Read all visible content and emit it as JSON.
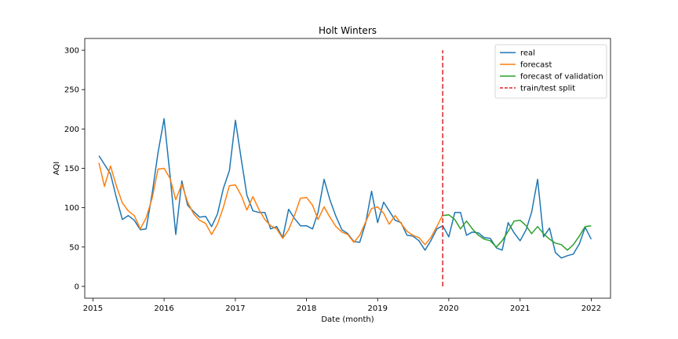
{
  "chart_data": {
    "type": "line",
    "title": "Holt Winters",
    "xlabel": "Date (month)",
    "ylabel": "AQI",
    "xlim": [
      "2014-11-20",
      "2022-04-10"
    ],
    "ylim": [
      -15,
      315
    ],
    "x_ticks": [
      "2015",
      "2016",
      "2017",
      "2018",
      "2019",
      "2020",
      "2021",
      "2022"
    ],
    "y_ticks": [
      0,
      50,
      100,
      150,
      200,
      250,
      300
    ],
    "grid": false,
    "legend_position": "top-right",
    "series": [
      {
        "name": "real",
        "color": "#1f77b4",
        "points": [
          [
            "2015-02",
            166
          ],
          [
            "2015-03",
            155
          ],
          [
            "2015-04",
            143
          ],
          [
            "2015-05",
            113
          ],
          [
            "2015-06",
            85
          ],
          [
            "2015-07",
            90
          ],
          [
            "2015-08",
            84
          ],
          [
            "2015-09",
            72
          ],
          [
            "2015-10",
            73
          ],
          [
            "2015-11",
            118
          ],
          [
            "2015-12",
            170
          ],
          [
            "2016-01",
            213
          ],
          [
            "2016-02",
            140
          ],
          [
            "2016-03",
            66
          ],
          [
            "2016-04",
            134
          ],
          [
            "2016-05",
            103
          ],
          [
            "2016-06",
            95
          ],
          [
            "2016-07",
            88
          ],
          [
            "2016-08",
            89
          ],
          [
            "2016-09",
            76
          ],
          [
            "2016-10",
            92
          ],
          [
            "2016-11",
            125
          ],
          [
            "2016-12",
            147
          ],
          [
            "2017-01",
            211
          ],
          [
            "2017-02",
            160
          ],
          [
            "2017-03",
            116
          ],
          [
            "2017-04",
            96
          ],
          [
            "2017-05",
            94
          ],
          [
            "2017-06",
            94
          ],
          [
            "2017-07",
            73
          ],
          [
            "2017-08",
            76
          ],
          [
            "2017-09",
            62
          ],
          [
            "2017-10",
            98
          ],
          [
            "2017-11",
            86
          ],
          [
            "2017-12",
            77
          ],
          [
            "2018-01",
            77
          ],
          [
            "2018-02",
            73
          ],
          [
            "2018-03",
            94
          ],
          [
            "2018-04",
            136
          ],
          [
            "2018-05",
            110
          ],
          [
            "2018-06",
            89
          ],
          [
            "2018-07",
            72
          ],
          [
            "2018-08",
            67
          ],
          [
            "2018-09",
            57
          ],
          [
            "2018-10",
            56
          ],
          [
            "2018-11",
            81
          ],
          [
            "2018-12",
            121
          ],
          [
            "2019-01",
            81
          ],
          [
            "2019-02",
            107
          ],
          [
            "2019-03",
            96
          ],
          [
            "2019-04",
            84
          ],
          [
            "2019-05",
            81
          ],
          [
            "2019-06",
            65
          ],
          [
            "2019-07",
            64
          ],
          [
            "2019-08",
            58
          ],
          [
            "2019-09",
            46
          ],
          [
            "2019-10",
            58
          ],
          [
            "2019-11",
            73
          ],
          [
            "2019-12",
            77
          ],
          [
            "2020-01",
            63
          ],
          [
            "2020-02",
            94
          ],
          [
            "2020-03",
            94
          ],
          [
            "2020-04",
            65
          ],
          [
            "2020-05",
            69
          ],
          [
            "2020-06",
            68
          ],
          [
            "2020-07",
            62
          ],
          [
            "2020-08",
            61
          ],
          [
            "2020-09",
            49
          ],
          [
            "2020-10",
            46
          ],
          [
            "2020-11",
            81
          ],
          [
            "2020-12",
            68
          ],
          [
            "2021-01",
            58
          ],
          [
            "2021-02",
            72
          ],
          [
            "2021-03",
            94
          ],
          [
            "2021-04",
            136
          ],
          [
            "2021-05",
            63
          ],
          [
            "2021-06",
            74
          ],
          [
            "2021-07",
            43
          ],
          [
            "2021-08",
            36
          ],
          [
            "2021-09",
            39
          ],
          [
            "2021-10",
            41
          ],
          [
            "2021-11",
            54
          ],
          [
            "2021-12",
            75
          ],
          [
            "2022-01",
            60
          ]
        ]
      },
      {
        "name": "forecast",
        "color": "#ff7f0e",
        "points": [
          [
            "2015-02",
            157
          ],
          [
            "2015-03",
            127
          ],
          [
            "2015-04",
            153
          ],
          [
            "2015-05",
            128
          ],
          [
            "2015-06",
            106
          ],
          [
            "2015-07",
            96
          ],
          [
            "2015-08",
            90
          ],
          [
            "2015-09",
            73
          ],
          [
            "2015-10",
            87
          ],
          [
            "2015-11",
            112
          ],
          [
            "2015-12",
            149
          ],
          [
            "2016-01",
            150
          ],
          [
            "2016-02",
            137
          ],
          [
            "2016-03",
            110
          ],
          [
            "2016-04",
            130
          ],
          [
            "2016-05",
            107
          ],
          [
            "2016-06",
            92
          ],
          [
            "2016-07",
            84
          ],
          [
            "2016-08",
            80
          ],
          [
            "2016-09",
            66
          ],
          [
            "2016-10",
            79
          ],
          [
            "2016-11",
            101
          ],
          [
            "2016-12",
            128
          ],
          [
            "2017-01",
            129
          ],
          [
            "2017-02",
            115
          ],
          [
            "2017-03",
            97
          ],
          [
            "2017-04",
            114
          ],
          [
            "2017-05",
            98
          ],
          [
            "2017-06",
            85
          ],
          [
            "2017-07",
            77
          ],
          [
            "2017-08",
            73
          ],
          [
            "2017-09",
            61
          ],
          [
            "2017-10",
            72
          ],
          [
            "2017-11",
            91
          ],
          [
            "2017-12",
            112
          ],
          [
            "2018-01",
            113
          ],
          [
            "2018-02",
            103
          ],
          [
            "2018-03",
            85
          ],
          [
            "2018-04",
            101
          ],
          [
            "2018-05",
            88
          ],
          [
            "2018-06",
            76
          ],
          [
            "2018-07",
            69
          ],
          [
            "2018-08",
            66
          ],
          [
            "2018-09",
            56
          ],
          [
            "2018-10",
            65
          ],
          [
            "2018-11",
            82
          ],
          [
            "2018-12",
            99
          ],
          [
            "2019-01",
            101
          ],
          [
            "2019-02",
            93
          ],
          [
            "2019-03",
            79
          ],
          [
            "2019-04",
            90
          ],
          [
            "2019-05",
            80
          ],
          [
            "2019-06",
            70
          ],
          [
            "2019-07",
            65
          ],
          [
            "2019-08",
            62
          ],
          [
            "2019-09",
            53
          ],
          [
            "2019-10",
            62
          ],
          [
            "2019-11",
            76
          ],
          [
            "2019-12",
            91
          ]
        ]
      },
      {
        "name": "forecast of validation",
        "color": "#2ca02c",
        "points": [
          [
            "2019-12",
            90
          ],
          [
            "2020-01",
            91
          ],
          [
            "2020-02",
            85
          ],
          [
            "2020-03",
            73
          ],
          [
            "2020-04",
            83
          ],
          [
            "2020-05",
            73
          ],
          [
            "2020-06",
            65
          ],
          [
            "2020-07",
            60
          ],
          [
            "2020-08",
            58
          ],
          [
            "2020-09",
            50
          ],
          [
            "2020-10",
            58
          ],
          [
            "2020-11",
            70
          ],
          [
            "2020-12",
            83
          ],
          [
            "2021-01",
            84
          ],
          [
            "2021-02",
            77
          ],
          [
            "2021-03",
            67
          ],
          [
            "2021-04",
            76
          ],
          [
            "2021-05",
            67
          ],
          [
            "2021-06",
            60
          ],
          [
            "2021-07",
            55
          ],
          [
            "2021-08",
            53
          ],
          [
            "2021-09",
            46
          ],
          [
            "2021-10",
            53
          ],
          [
            "2021-11",
            64
          ],
          [
            "2021-12",
            76
          ],
          [
            "2022-01",
            77
          ]
        ]
      },
      {
        "name": "train/test split",
        "color": "#d62728",
        "style": "dashed",
        "points": [
          [
            "2019-12",
            0
          ],
          [
            "2019-12",
            300
          ]
        ]
      }
    ]
  }
}
